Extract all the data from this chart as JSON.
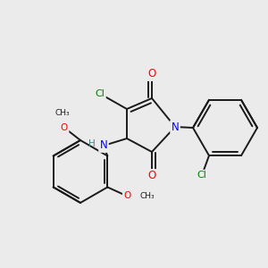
{
  "background_color": "#ebebeb",
  "bond_color": "#1a1a1a",
  "bond_width": 1.4,
  "atom_colors": {
    "O": "#ff0000",
    "N": "#0000ff",
    "Cl": "#008000",
    "C": "#1a1a1a",
    "H": "#4a8080"
  },
  "font_size": 8.5
}
